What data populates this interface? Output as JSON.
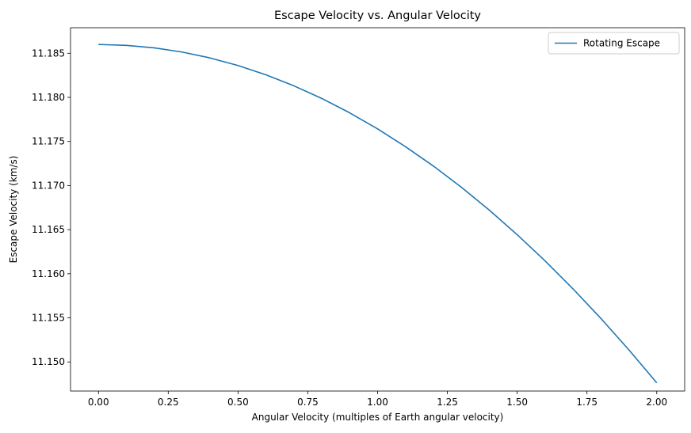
{
  "chart_data": {
    "type": "line",
    "title": "Escape Velocity vs. Angular Velocity",
    "xlabel": "Angular Velocity (multiples of Earth angular velocity)",
    "ylabel": "Escape Velocity (km/s)",
    "xlim": [
      -0.1,
      2.1
    ],
    "ylim": [
      11.1467,
      11.1879
    ],
    "xticks": [
      0.0,
      0.25,
      0.5,
      0.75,
      1.0,
      1.25,
      1.5,
      1.75,
      2.0
    ],
    "xtick_labels": [
      "0.00",
      "0.25",
      "0.50",
      "0.75",
      "1.00",
      "1.25",
      "1.50",
      "1.75",
      "2.00"
    ],
    "yticks": [
      11.15,
      11.155,
      11.16,
      11.165,
      11.17,
      11.175,
      11.18,
      11.185
    ],
    "ytick_labels": [
      "11.150",
      "11.155",
      "11.160",
      "11.165",
      "11.170",
      "11.175",
      "11.180",
      "11.185"
    ],
    "grid": false,
    "legend_position": "top-right",
    "series": [
      {
        "name": "Rotating Escape",
        "color": "#1f77b4",
        "x": [
          0.0,
          0.1,
          0.2,
          0.3,
          0.4,
          0.5,
          0.6,
          0.7,
          0.8,
          0.9,
          1.0,
          1.1,
          1.2,
          1.3,
          1.4,
          1.5,
          1.6,
          1.7,
          1.8,
          1.9,
          2.0
        ],
        "y": [
          11.186,
          11.1859,
          11.18562,
          11.18514,
          11.18447,
          11.18361,
          11.18256,
          11.18131,
          11.17988,
          11.17825,
          11.17643,
          11.17441,
          11.17221,
          11.16981,
          11.16722,
          11.16443,
          11.16146,
          11.15829,
          11.15493,
          11.15138,
          11.14763
        ]
      }
    ]
  }
}
